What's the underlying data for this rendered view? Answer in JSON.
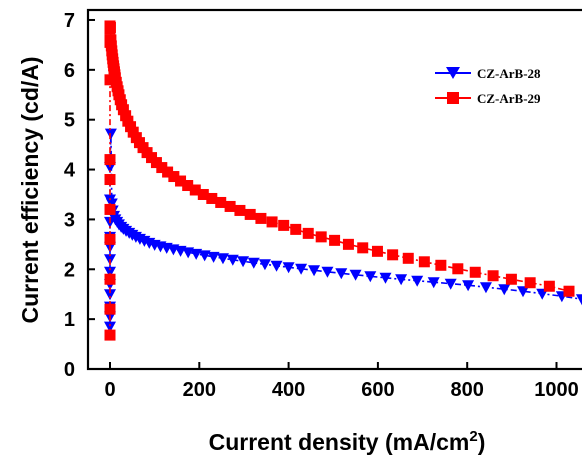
{
  "chart_data": {
    "type": "line",
    "title": "",
    "xlabel": "Current density (mA/cm",
    "xlabel_sup": "2",
    "xlabel_close": ")",
    "ylabel": "Current efficiency (cd/A)",
    "xlim": [
      -60,
      1100
    ],
    "ylim": [
      0,
      7.2
    ],
    "xticks": [
      "0",
      "200",
      "400",
      "600",
      "800",
      "1000"
    ],
    "yticks": [
      "0",
      "1",
      "2",
      "3",
      "4",
      "5",
      "6",
      "7"
    ],
    "grid": false,
    "legend_position": "top-right",
    "series": [
      {
        "name": "CZ-ArB-28",
        "color": "#0000ff",
        "marker": "triangle-down",
        "line": "dash-dot",
        "x": [
          0,
          0,
          0,
          0,
          0,
          0,
          0,
          0,
          0,
          0,
          0,
          0,
          2,
          4,
          6,
          9,
          12,
          16,
          20,
          25,
          30,
          36,
          43,
          50,
          58,
          67,
          77,
          88,
          100,
          113,
          127,
          142,
          158,
          175,
          193,
          212,
          232,
          253,
          275,
          298,
          322,
          347,
          373,
          400,
          428,
          457,
          487,
          518,
          550,
          583,
          617,
          652,
          688,
          725,
          763,
          802,
          842,
          883,
          925,
          968,
          1012,
          1057,
          1090
        ],
        "y": [
          0.85,
          1.05,
          1.25,
          1.5,
          1.7,
          1.95,
          2.2,
          2.45,
          2.65,
          2.95,
          3.4,
          4.05,
          4.72,
          3.32,
          3.18,
          3.07,
          3.0,
          2.95,
          2.9,
          2.85,
          2.81,
          2.77,
          2.73,
          2.69,
          2.65,
          2.61,
          2.57,
          2.53,
          2.49,
          2.46,
          2.43,
          2.4,
          2.37,
          2.34,
          2.31,
          2.28,
          2.25,
          2.22,
          2.19,
          2.16,
          2.13,
          2.1,
          2.07,
          2.04,
          2.01,
          1.98,
          1.95,
          1.92,
          1.89,
          1.86,
          1.83,
          1.8,
          1.77,
          1.74,
          1.71,
          1.68,
          1.64,
          1.6,
          1.56,
          1.51,
          1.46,
          1.4,
          1.32
        ]
      },
      {
        "name": "CZ-ArB-29",
        "color": "#ff0000",
        "marker": "square",
        "line": "dash-dot",
        "x": [
          0,
          0,
          0,
          0,
          0,
          0,
          0,
          0,
          0,
          0,
          0,
          0,
          1,
          2,
          3,
          4,
          5,
          6,
          7,
          8,
          9,
          10,
          11,
          12,
          14,
          16,
          18,
          20,
          23,
          26,
          30,
          35,
          40,
          46,
          52,
          59,
          66,
          74,
          83,
          93,
          104,
          116,
          129,
          143,
          158,
          174,
          191,
          209,
          228,
          248,
          269,
          291,
          314,
          338,
          363,
          389,
          416,
          444,
          473,
          503,
          534,
          566,
          599,
          633,
          668,
          704,
          741,
          779,
          818,
          858,
          899,
          941,
          984,
          1028
        ],
        "y": [
          0.68,
          1.2,
          1.8,
          2.6,
          3.2,
          3.8,
          4.2,
          5.8,
          6.55,
          6.6,
          6.82,
          6.88,
          6.85,
          6.6,
          6.48,
          6.38,
          6.3,
          6.22,
          6.15,
          6.08,
          6.02,
          5.96,
          5.9,
          5.84,
          5.75,
          5.66,
          5.58,
          5.5,
          5.4,
          5.3,
          5.2,
          5.08,
          4.97,
          4.86,
          4.75,
          4.64,
          4.54,
          4.44,
          4.34,
          4.24,
          4.14,
          4.04,
          3.95,
          3.86,
          3.77,
          3.68,
          3.59,
          3.5,
          3.42,
          3.34,
          3.26,
          3.18,
          3.1,
          3.02,
          2.95,
          2.88,
          2.8,
          2.72,
          2.65,
          2.58,
          2.5,
          2.43,
          2.36,
          2.29,
          2.22,
          2.15,
          2.08,
          2.01,
          1.94,
          1.87,
          1.8,
          1.73,
          1.66,
          1.56
        ]
      }
    ]
  }
}
